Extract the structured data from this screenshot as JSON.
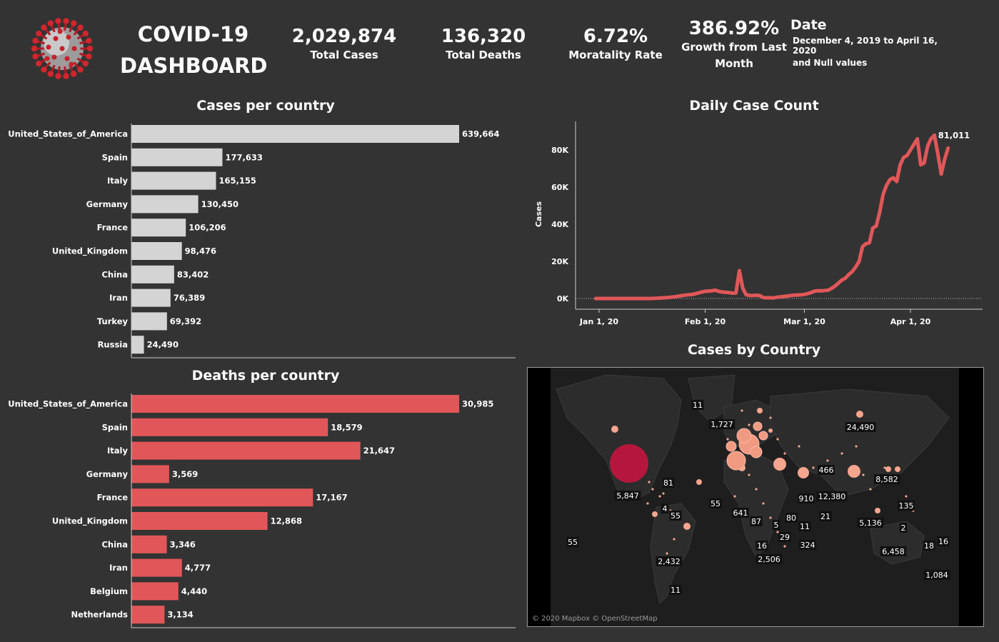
{
  "header": {
    "title_line1": "COVID-19",
    "title_line2": "DASHBOARD",
    "logo_icon": "coronavirus-icon",
    "kpis": [
      {
        "value": "2,029,874",
        "label": "Total Cases"
      },
      {
        "value": "136,320",
        "label": "Total Deaths"
      },
      {
        "value": "6.72%",
        "label": "Moratality Rate"
      },
      {
        "value": "386.92%",
        "label_line1": "Growth from Last",
        "label_line2": "Month"
      }
    ],
    "date_filter": {
      "title": "Date",
      "line1": "December 4, 2019 to April 16, 2020",
      "line2": "and Null values"
    }
  },
  "colors": {
    "background": "#333333",
    "cases_bar": "#d4d4d4",
    "deaths_bar": "#e15759",
    "line": "#e15759",
    "map_big_bubble": "#b5173c",
    "map_bubble": "#f6a58e"
  },
  "chart_data": [
    {
      "id": "cases",
      "type": "bar",
      "title": "Cases per country",
      "categories": [
        "United_States_of_America",
        "Spain",
        "Italy",
        "Germany",
        "France",
        "United_Kingdom",
        "China",
        "Iran",
        "Turkey",
        "Russia"
      ],
      "values": [
        639664,
        177633,
        165155,
        130450,
        106206,
        98476,
        83402,
        76389,
        69392,
        24490
      ],
      "value_labels": [
        "639,664",
        "177,633",
        "165,155",
        "130,450",
        "106,206",
        "98,476",
        "83,402",
        "76,389",
        "69,392",
        "24,490"
      ],
      "xlim": [
        0,
        639664
      ]
    },
    {
      "id": "deaths",
      "type": "bar",
      "title": "Deaths per country",
      "categories": [
        "United_States_of_America",
        "Spain",
        "Italy",
        "Germany",
        "France",
        "United_Kingdom",
        "China",
        "Iran",
        "Belgium",
        "Netherlands"
      ],
      "values": [
        30985,
        18579,
        21647,
        3569,
        17167,
        12868,
        3346,
        4777,
        4440,
        3134
      ],
      "value_labels": [
        "30,985",
        "18,579",
        "21,647",
        "3,569",
        "17,167",
        "12,868",
        "3,346",
        "4,777",
        "4,440",
        "3,134"
      ],
      "xlim": [
        0,
        30985
      ]
    },
    {
      "id": "daily",
      "type": "line",
      "title": "Daily Case Count",
      "ylabel": "Cases",
      "ylim": [
        0,
        90000
      ],
      "yticks": [
        0,
        20000,
        40000,
        60000,
        80000
      ],
      "ytick_labels": [
        "0K",
        "20K",
        "40K",
        "60K",
        "80K"
      ],
      "xticks": [
        "2020-01-01",
        "2020-02-01",
        "2020-03-01",
        "2020-04-01"
      ],
      "xtick_labels": [
        "Jan 1, 20",
        "Feb 1, 20",
        "Mar 1, 20",
        "Apr 1, 20"
      ],
      "x_start": "2019-12-31",
      "x_end": "2020-04-16",
      "end_label": "81,011",
      "y": [
        0,
        0,
        0,
        0,
        0,
        0,
        0,
        0,
        0,
        0,
        0,
        0,
        0,
        0,
        0,
        0,
        0,
        100,
        200,
        300,
        400,
        500,
        700,
        900,
        1200,
        1500,
        1800,
        2000,
        2100,
        2500,
        3000,
        3500,
        3900,
        4000,
        4200,
        4500,
        3800,
        3500,
        3300,
        3200,
        2900,
        3000,
        15000,
        5500,
        2000,
        1700,
        1600,
        1800,
        1500,
        500,
        400,
        400,
        300,
        700,
        900,
        1100,
        1300,
        1600,
        1800,
        1900,
        2000,
        2200,
        2700,
        3200,
        4000,
        4200,
        4100,
        4300,
        4500,
        5500,
        6800,
        8400,
        10000,
        11000,
        13000,
        14500,
        17000,
        20000,
        28000,
        29500,
        30000,
        38000,
        39000,
        46500,
        56000,
        61000,
        64000,
        65000,
        63000,
        72000,
        76000,
        77000,
        80000,
        83000,
        86000,
        72000,
        73000,
        82000,
        86000,
        88000,
        78000,
        67000,
        75000,
        81011
      ]
    },
    {
      "id": "map",
      "type": "map",
      "title": "Cases by Country",
      "attribution": "© 2020 Mapbox © OpenStreetMap",
      "labels": [
        "11",
        "1,727",
        "24,490",
        "466",
        "8,582",
        "5,847",
        "81",
        "4",
        "55",
        "55",
        "641",
        "87",
        "5",
        "80",
        "11",
        "29",
        "16",
        "2,506",
        "324",
        "910",
        "12,380",
        "21",
        "135",
        "5,136",
        "2",
        "55",
        "6,458",
        "18",
        "16",
        "1,084",
        "2,432",
        "11"
      ]
    }
  ]
}
